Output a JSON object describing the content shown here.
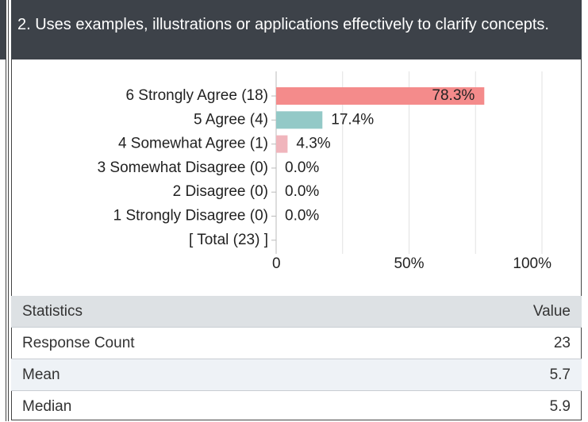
{
  "header": {
    "title": "2. Uses examples, illustrations or applications effectively to clarify concepts."
  },
  "chart_data": {
    "type": "bar",
    "orientation": "horizontal",
    "categories": [
      "6 Strongly Agree (18)",
      "5 Agree (4)",
      "4 Somewhat Agree (1)",
      "3 Somewhat Disagree (0)",
      "2 Disagree (0)",
      "1 Strongly Disagree (0)",
      "[ Total (23) ]"
    ],
    "values": [
      78.3,
      17.4,
      4.3,
      0,
      0,
      0,
      null
    ],
    "value_labels": [
      "78.3%",
      "17.4%",
      "4.3%",
      "0.0%",
      "0.0%",
      "0.0%",
      null
    ],
    "colors": [
      "#f48b8b",
      "#93c9c7",
      "#f0b5bc",
      "#cccccc",
      "#cccccc",
      "#cccccc",
      null
    ],
    "xlim": [
      0,
      100
    ],
    "xticks": [
      0,
      {
        "value": 50,
        "label": "50%"
      },
      {
        "value": 100,
        "label": "100%"
      }
    ],
    "minor_grid": [
      25,
      75
    ],
    "grid": true
  },
  "table": {
    "columns": [
      "Statistics",
      "Value"
    ],
    "rows": [
      [
        "Response Count",
        "23"
      ],
      [
        "Mean",
        "5.7"
      ],
      [
        "Median",
        "5.9"
      ]
    ]
  }
}
